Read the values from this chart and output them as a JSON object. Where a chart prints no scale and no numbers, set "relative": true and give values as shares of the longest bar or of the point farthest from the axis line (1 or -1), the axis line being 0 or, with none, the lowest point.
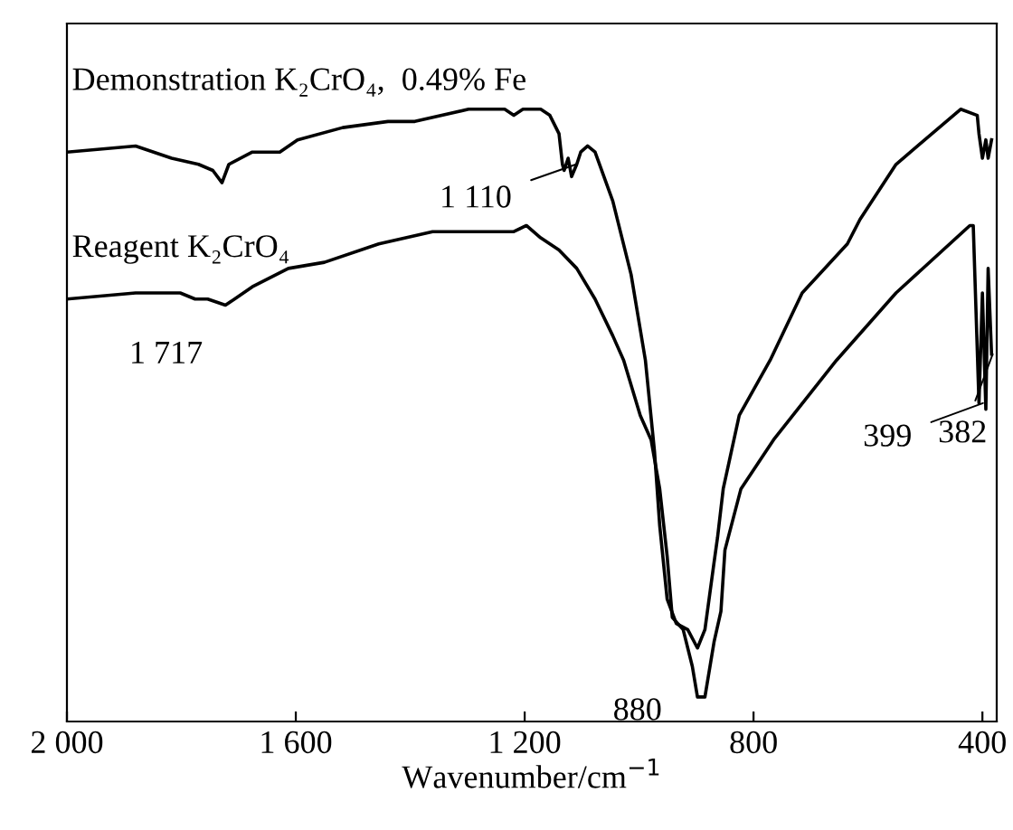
{
  "chart_data": {
    "type": "line",
    "relative": true,
    "xlabel": "Wavenumber/cm$^{−1}$",
    "xlim": [
      2000,
      375
    ],
    "xticks": [
      {
        "value": 2000,
        "label": "2 000"
      },
      {
        "value": 1600,
        "label": "1 600"
      },
      {
        "value": 1200,
        "label": "1 200"
      },
      800,
      400
    ],
    "grid": false,
    "legend": false,
    "marker": "none",
    "line_style": "solid",
    "series": [
      {
        "name": "Demonstration K₂CrO₄,  0.49% Fe",
        "color": "#000000",
        "x": [
          2000,
          1880,
          1817,
          1770,
          1745,
          1729,
          1717,
          1676,
          1628,
          1597,
          1518,
          1439,
          1392,
          1298,
          1235,
          1219,
          1203,
          1172,
          1156,
          1140,
          1134,
          1131,
          1124,
          1118,
          1109,
          1102,
          1090,
          1077,
          1046,
          1014,
          989,
          973,
          964,
          951,
          935,
          915,
          898,
          885,
          869,
          863,
          853,
          825,
          771,
          715,
          636,
          614,
          551,
          438,
          409,
          406,
          400,
          394,
          390,
          384
        ],
        "values": [
          0.93,
          0.94,
          0.92,
          0.91,
          0.9,
          0.88,
          0.91,
          0.93,
          0.93,
          0.95,
          0.97,
          0.98,
          0.98,
          1.0,
          1.0,
          0.99,
          1.0,
          1.0,
          0.99,
          0.96,
          0.91,
          0.9,
          0.92,
          0.89,
          0.91,
          0.93,
          0.94,
          0.93,
          0.85,
          0.73,
          0.59,
          0.44,
          0.32,
          0.2,
          0.16,
          0.15,
          0.12,
          0.15,
          0.26,
          0.3,
          0.38,
          0.5,
          0.59,
          0.7,
          0.78,
          0.82,
          0.91,
          1.0,
          0.99,
          0.96,
          0.92,
          0.95,
          0.92,
          0.95
        ]
      },
      {
        "name": "Reagent K₂CrO₄",
        "color": "#000000",
        "x": [
          2000,
          1880,
          1802,
          1776,
          1754,
          1723,
          1707,
          1676,
          1613,
          1550,
          1455,
          1361,
          1298,
          1219,
          1197,
          1172,
          1140,
          1109,
          1077,
          1046,
          1027,
          998,
          979,
          964,
          951,
          942,
          923,
          907,
          898,
          885,
          869,
          857,
          850,
          822,
          765,
          655,
          551,
          422,
          416,
          406,
          400,
          394,
          390,
          384
        ],
        "values": [
          0.69,
          0.7,
          0.7,
          0.69,
          0.69,
          0.68,
          0.69,
          0.71,
          0.74,
          0.75,
          0.78,
          0.8,
          0.8,
          0.8,
          0.81,
          0.79,
          0.77,
          0.74,
          0.69,
          0.63,
          0.59,
          0.5,
          0.46,
          0.38,
          0.27,
          0.17,
          0.15,
          0.09,
          0.04,
          0.04,
          0.13,
          0.18,
          0.28,
          0.38,
          0.46,
          0.59,
          0.7,
          0.81,
          0.81,
          0.52,
          0.7,
          0.51,
          0.74,
          0.6
        ]
      }
    ],
    "annotations": [
      {
        "text": "1 717",
        "x": 1717,
        "y": 0.68
      },
      {
        "text": "1 110",
        "x": 1110,
        "y": 0.91
      },
      {
        "text": "880",
        "x": 880,
        "y": 0.04
      },
      {
        "text": "399",
        "x": 399,
        "y": 0.52
      },
      {
        "text": "382",
        "x": 382,
        "y": 0.6
      }
    ]
  }
}
